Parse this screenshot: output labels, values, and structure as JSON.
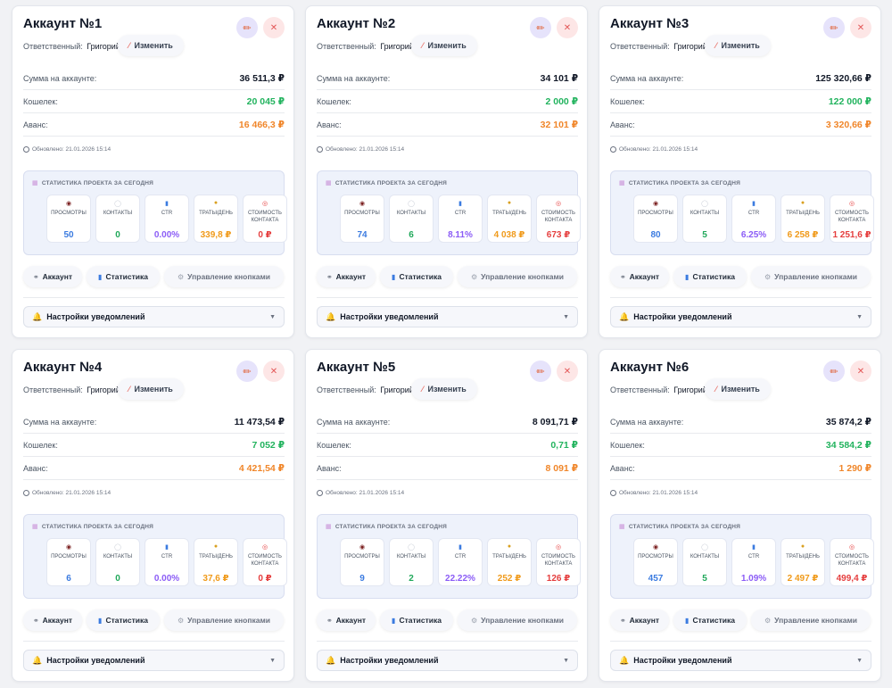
{
  "labels": {
    "responsible": "Ответственный:",
    "change": "Изменить",
    "balance": "Сумма на аккаунте:",
    "wallet": "Кошелек:",
    "advance": "Аванс:",
    "stats_title": "СТАТИСТИКА ПРОЕКТА ЗА СЕГОДНЯ",
    "views": "ПРОСМОТРЫ",
    "contacts": "КОНТАКТЫ",
    "ctr": "CTR",
    "spend_line1": "ТРАТЫ/ДЕНЬ",
    "cost_line1": "СТОИМОСТЬ",
    "cost_line2": "КОНТАКТА",
    "btn_account": "Аккаунт",
    "btn_stats": "Статистика",
    "btn_manage": "Управление кнопками",
    "notifications": "Настройки уведомлений"
  },
  "icons": {
    "edit": "pencil-icon",
    "delete": "close-icon",
    "clock": "clock-icon",
    "views": "eye-icon",
    "contacts": "speech-bubble-icon",
    "ctr": "bar-chart-icon",
    "spend": "money-bag-icon",
    "cost": "target-icon",
    "link": "link-icon",
    "gear": "gear-icon",
    "bell": "bell-icon",
    "chevron": "chevron-down-icon"
  },
  "colors": {
    "wallet": "#22b35e",
    "advance": "#f0862a",
    "views": "#3b7be0",
    "contacts": "#20a85a",
    "ctr": "#8b5cf6",
    "spend": "#f09a1a",
    "cost": "#e53e3e"
  },
  "cards": [
    {
      "title": "Аккаунт №1",
      "responsible_user": "Григорий",
      "balance": "36 511,3 ₽",
      "wallet": "20 045 ₽",
      "advance": "16 466,3 ₽",
      "updated": "Обновлено: 21.01.2026 15:14",
      "views": "50",
      "contacts": "0",
      "ctr": "0.00%",
      "spend": "339,8 ₽",
      "cost": "0 ₽"
    },
    {
      "title": "Аккаунт №2",
      "responsible_user": "Григорий",
      "balance": "34 101 ₽",
      "wallet": "2 000 ₽",
      "advance": "32 101 ₽",
      "updated": "Обновлено: 21.01.2026 15:14",
      "views": "74",
      "contacts": "6",
      "ctr": "8.11%",
      "spend": "4 038 ₽",
      "cost": "673 ₽"
    },
    {
      "title": "Аккаунт №3",
      "responsible_user": "Григорий",
      "balance": "125 320,66 ₽",
      "wallet": "122 000 ₽",
      "advance": "3 320,66 ₽",
      "updated": "Обновлено: 21.01.2026 15:14",
      "views": "80",
      "contacts": "5",
      "ctr": "6.25%",
      "spend": "6 258 ₽",
      "cost": "1 251,6 ₽"
    },
    {
      "title": "Аккаунт №4",
      "responsible_user": "Григорий",
      "balance": "11 473,54 ₽",
      "wallet": "7 052 ₽",
      "advance": "4 421,54 ₽",
      "updated": "Обновлено: 21.01.2026 15:14",
      "views": "6",
      "contacts": "0",
      "ctr": "0.00%",
      "spend": "37,6 ₽",
      "cost": "0 ₽"
    },
    {
      "title": "Аккаунт №5",
      "responsible_user": "Григорий",
      "balance": "8 091,71 ₽",
      "wallet": "0,71 ₽",
      "advance": "8 091 ₽",
      "updated": "Обновлено: 21.01.2026 15:14",
      "views": "9",
      "contacts": "2",
      "ctr": "22.22%",
      "spend": "252 ₽",
      "cost": "126 ₽"
    },
    {
      "title": "Аккаунт №6",
      "responsible_user": "Григорий",
      "balance": "35 874,2 ₽",
      "wallet": "34 584,2 ₽",
      "advance": "1 290 ₽",
      "updated": "Обновлено: 21.01.2026 15:14",
      "views": "457",
      "contacts": "5",
      "ctr": "1.09%",
      "spend": "2 497 ₽",
      "cost": "499,4 ₽"
    }
  ]
}
